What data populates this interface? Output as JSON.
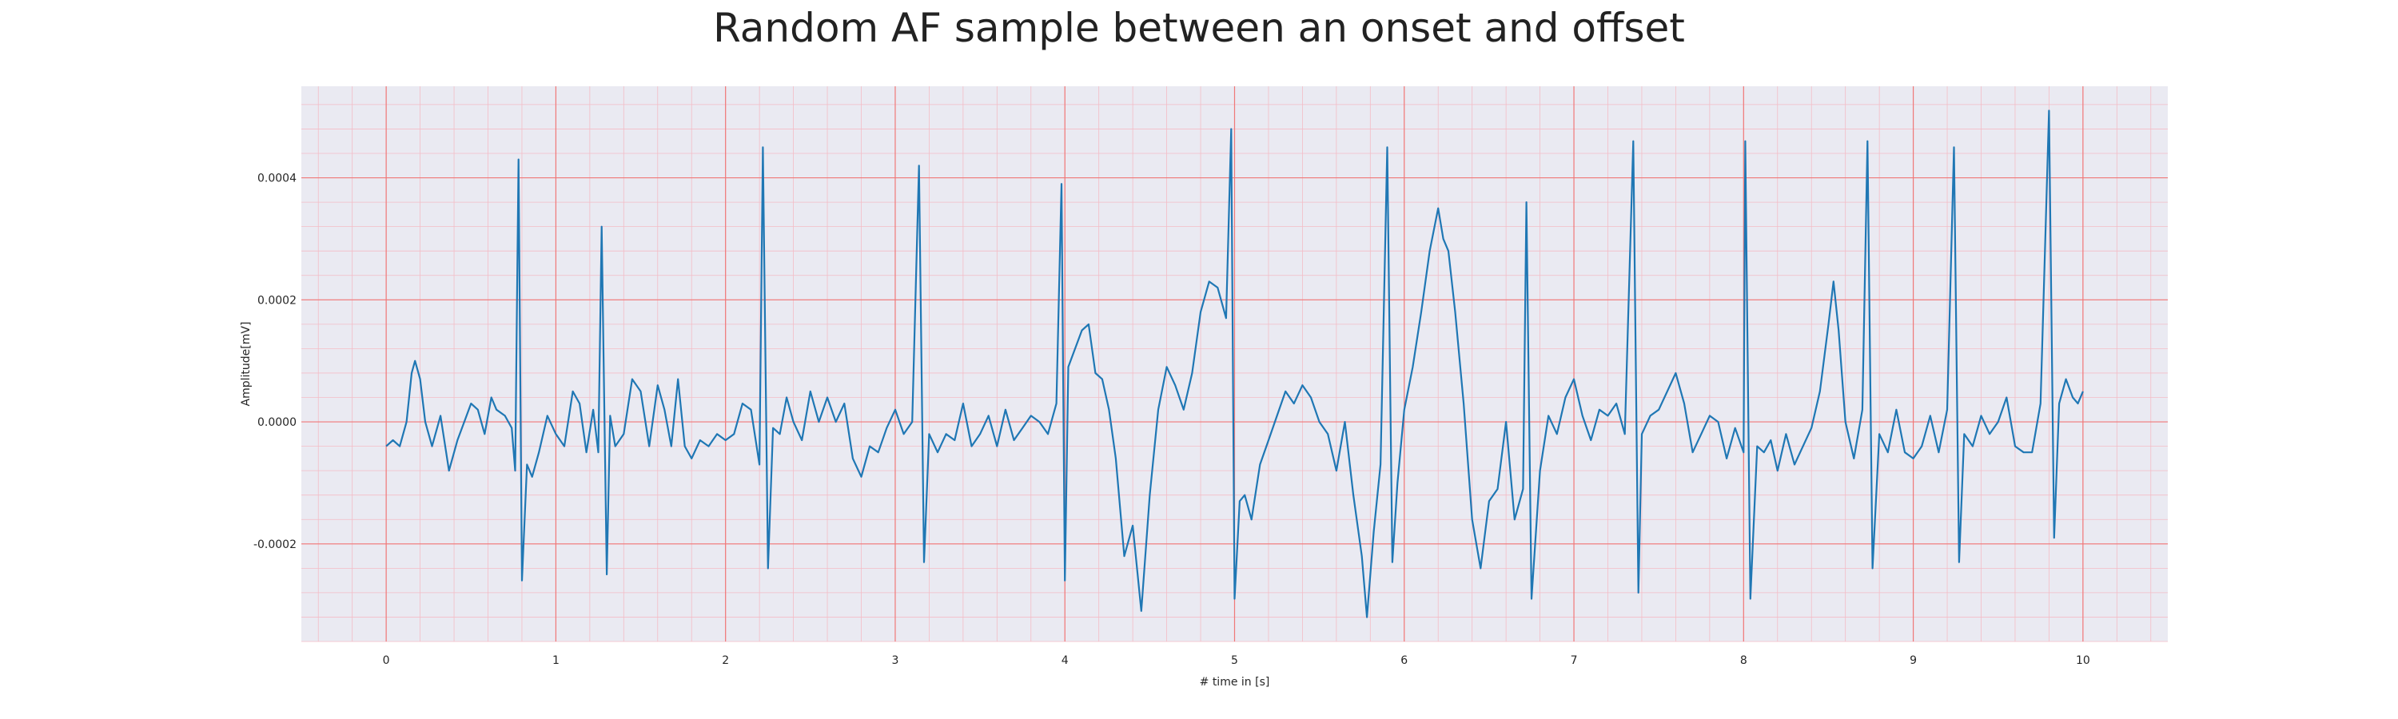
{
  "chart_data": {
    "type": "line",
    "title": "Random AF sample between an onset and offset",
    "xlabel": "# time in [s]",
    "ylabel": "Amplitude[mV]",
    "xlim": [
      -0.5,
      10.5
    ],
    "ylim": [
      -0.00036,
      0.00055
    ],
    "xticks": [
      0,
      1,
      2,
      3,
      4,
      5,
      6,
      7,
      8,
      9,
      10
    ],
    "xtick_labels": [
      "0",
      "1",
      "2",
      "3",
      "4",
      "5",
      "6",
      "7",
      "8",
      "9",
      "10"
    ],
    "yticks": [
      -0.0002,
      0.0,
      0.0002,
      0.0004
    ],
    "ytick_labels": [
      "-0.0002",
      "0.0000",
      "0.0002",
      "0.0004"
    ],
    "grid": true,
    "grid_style": "ecg-paper",
    "colors": {
      "background": "#eaeaf2",
      "major_grid": "#f07878",
      "minor_grid": "#f4bcc6",
      "line": "#1f77b4"
    },
    "series": [
      {
        "name": "",
        "points": [
          [
            0.0,
            -4e-05
          ],
          [
            0.04,
            -3e-05
          ],
          [
            0.08,
            -4e-05
          ],
          [
            0.12,
            0.0
          ],
          [
            0.15,
            8e-05
          ],
          [
            0.17,
            0.0001
          ],
          [
            0.2,
            7e-05
          ],
          [
            0.23,
            0.0
          ],
          [
            0.27,
            -4e-05
          ],
          [
            0.32,
            1e-05
          ],
          [
            0.37,
            -8e-05
          ],
          [
            0.42,
            -3e-05
          ],
          [
            0.46,
            0.0
          ],
          [
            0.5,
            3e-05
          ],
          [
            0.54,
            2e-05
          ],
          [
            0.58,
            -2e-05
          ],
          [
            0.62,
            4e-05
          ],
          [
            0.65,
            2e-05
          ],
          [
            0.7,
            1e-05
          ],
          [
            0.74,
            -1e-05
          ],
          [
            0.76,
            -8e-05
          ],
          [
            0.78,
            0.00043
          ],
          [
            0.8,
            -0.00026
          ],
          [
            0.83,
            -7e-05
          ],
          [
            0.86,
            -9e-05
          ],
          [
            0.9,
            -5e-05
          ],
          [
            0.95,
            1e-05
          ],
          [
            1.0,
            -2e-05
          ],
          [
            1.05,
            -4e-05
          ],
          [
            1.1,
            5e-05
          ],
          [
            1.14,
            3e-05
          ],
          [
            1.18,
            -5e-05
          ],
          [
            1.22,
            2e-05
          ],
          [
            1.25,
            -5e-05
          ],
          [
            1.27,
            0.00032
          ],
          [
            1.3,
            -0.00025
          ],
          [
            1.32,
            1e-05
          ],
          [
            1.35,
            -4e-05
          ],
          [
            1.4,
            -2e-05
          ],
          [
            1.45,
            7e-05
          ],
          [
            1.5,
            5e-05
          ],
          [
            1.55,
            -4e-05
          ],
          [
            1.6,
            6e-05
          ],
          [
            1.64,
            2e-05
          ],
          [
            1.68,
            -4e-05
          ],
          [
            1.72,
            7e-05
          ],
          [
            1.76,
            -4e-05
          ],
          [
            1.8,
            -6e-05
          ],
          [
            1.85,
            -3e-05
          ],
          [
            1.9,
            -4e-05
          ],
          [
            1.95,
            -2e-05
          ],
          [
            2.0,
            -3e-05
          ],
          [
            2.05,
            -2e-05
          ],
          [
            2.1,
            3e-05
          ],
          [
            2.15,
            2e-05
          ],
          [
            2.2,
            -7e-05
          ],
          [
            2.22,
            0.00045
          ],
          [
            2.25,
            -0.00024
          ],
          [
            2.28,
            -1e-05
          ],
          [
            2.32,
            -2e-05
          ],
          [
            2.36,
            4e-05
          ],
          [
            2.4,
            0.0
          ],
          [
            2.45,
            -3e-05
          ],
          [
            2.5,
            5e-05
          ],
          [
            2.55,
            0.0
          ],
          [
            2.6,
            4e-05
          ],
          [
            2.65,
            0.0
          ],
          [
            2.7,
            3e-05
          ],
          [
            2.75,
            -6e-05
          ],
          [
            2.8,
            -9e-05
          ],
          [
            2.85,
            -4e-05
          ],
          [
            2.9,
            -5e-05
          ],
          [
            2.95,
            -1e-05
          ],
          [
            3.0,
            2e-05
          ],
          [
            3.05,
            -2e-05
          ],
          [
            3.1,
            0.0
          ],
          [
            3.14,
            0.00042
          ],
          [
            3.17,
            -0.00023
          ],
          [
            3.2,
            -2e-05
          ],
          [
            3.25,
            -5e-05
          ],
          [
            3.3,
            -2e-05
          ],
          [
            3.35,
            -3e-05
          ],
          [
            3.4,
            3e-05
          ],
          [
            3.45,
            -4e-05
          ],
          [
            3.5,
            -2e-05
          ],
          [
            3.55,
            1e-05
          ],
          [
            3.6,
            -4e-05
          ],
          [
            3.65,
            2e-05
          ],
          [
            3.7,
            -3e-05
          ],
          [
            3.75,
            -1e-05
          ],
          [
            3.8,
            1e-05
          ],
          [
            3.85,
            0.0
          ],
          [
            3.9,
            -2e-05
          ],
          [
            3.95,
            3e-05
          ],
          [
            3.98,
            0.00039
          ],
          [
            4.0,
            -0.00026
          ],
          [
            4.02,
            9e-05
          ],
          [
            4.06,
            0.00012
          ],
          [
            4.1,
            0.00015
          ],
          [
            4.14,
            0.00016
          ],
          [
            4.18,
            8e-05
          ],
          [
            4.22,
            7e-05
          ],
          [
            4.26,
            2e-05
          ],
          [
            4.3,
            -6e-05
          ],
          [
            4.35,
            -0.00022
          ],
          [
            4.4,
            -0.00017
          ],
          [
            4.45,
            -0.00031
          ],
          [
            4.5,
            -0.00012
          ],
          [
            4.55,
            2e-05
          ],
          [
            4.6,
            9e-05
          ],
          [
            4.65,
            6e-05
          ],
          [
            4.7,
            2e-05
          ],
          [
            4.75,
            8e-05
          ],
          [
            4.8,
            0.00018
          ],
          [
            4.85,
            0.00023
          ],
          [
            4.9,
            0.00022
          ],
          [
            4.95,
            0.00017
          ],
          [
            4.98,
            0.00048
          ],
          [
            5.0,
            -0.00029
          ],
          [
            5.03,
            -0.00013
          ],
          [
            5.06,
            -0.00012
          ],
          [
            5.1,
            -0.00016
          ],
          [
            5.15,
            -7e-05
          ],
          [
            5.2,
            -3e-05
          ],
          [
            5.25,
            1e-05
          ],
          [
            5.3,
            5e-05
          ],
          [
            5.35,
            3e-05
          ],
          [
            5.4,
            6e-05
          ],
          [
            5.45,
            4e-05
          ],
          [
            5.5,
            0.0
          ],
          [
            5.55,
            -2e-05
          ],
          [
            5.6,
            -8e-05
          ],
          [
            5.65,
            0.0
          ],
          [
            5.7,
            -0.00012
          ],
          [
            5.75,
            -0.00022
          ],
          [
            5.78,
            -0.00032
          ],
          [
            5.82,
            -0.00018
          ],
          [
            5.86,
            -7e-05
          ],
          [
            5.9,
            0.00045
          ],
          [
            5.93,
            -0.00023
          ],
          [
            5.96,
            -0.0001
          ],
          [
            6.0,
            2e-05
          ],
          [
            6.05,
            9e-05
          ],
          [
            6.1,
            0.00018
          ],
          [
            6.15,
            0.00028
          ],
          [
            6.2,
            0.00035
          ],
          [
            6.23,
            0.0003
          ],
          [
            6.26,
            0.00028
          ],
          [
            6.3,
            0.00018
          ],
          [
            6.35,
            3e-05
          ],
          [
            6.4,
            -0.00016
          ],
          [
            6.45,
            -0.00024
          ],
          [
            6.5,
            -0.00013
          ],
          [
            6.55,
            -0.00011
          ],
          [
            6.6,
            0.0
          ],
          [
            6.65,
            -0.00016
          ],
          [
            6.7,
            -0.00011
          ],
          [
            6.72,
            0.00036
          ],
          [
            6.75,
            -0.00029
          ],
          [
            6.8,
            -8e-05
          ],
          [
            6.85,
            1e-05
          ],
          [
            6.9,
            -2e-05
          ],
          [
            6.95,
            4e-05
          ],
          [
            7.0,
            7e-05
          ],
          [
            7.05,
            1e-05
          ],
          [
            7.1,
            -3e-05
          ],
          [
            7.15,
            2e-05
          ],
          [
            7.2,
            1e-05
          ],
          [
            7.25,
            3e-05
          ],
          [
            7.3,
            -2e-05
          ],
          [
            7.35,
            0.00046
          ],
          [
            7.38,
            -0.00028
          ],
          [
            7.4,
            -2e-05
          ],
          [
            7.45,
            1e-05
          ],
          [
            7.5,
            2e-05
          ],
          [
            7.55,
            5e-05
          ],
          [
            7.6,
            8e-05
          ],
          [
            7.65,
            3e-05
          ],
          [
            7.7,
            -5e-05
          ],
          [
            7.75,
            -2e-05
          ],
          [
            7.8,
            1e-05
          ],
          [
            7.85,
            0.0
          ],
          [
            7.9,
            -6e-05
          ],
          [
            7.95,
            -1e-05
          ],
          [
            8.0,
            -5e-05
          ],
          [
            8.01,
            0.00046
          ],
          [
            8.04,
            -0.00029
          ],
          [
            8.08,
            -4e-05
          ],
          [
            8.12,
            -5e-05
          ],
          [
            8.16,
            -3e-05
          ],
          [
            8.2,
            -8e-05
          ],
          [
            8.25,
            -2e-05
          ],
          [
            8.3,
            -7e-05
          ],
          [
            8.35,
            -4e-05
          ],
          [
            8.4,
            -1e-05
          ],
          [
            8.45,
            5e-05
          ],
          [
            8.5,
            0.00016
          ],
          [
            8.53,
            0.00023
          ],
          [
            8.56,
            0.00015
          ],
          [
            8.6,
            0.0
          ],
          [
            8.65,
            -6e-05
          ],
          [
            8.7,
            2e-05
          ],
          [
            8.73,
            0.00046
          ],
          [
            8.76,
            -0.00024
          ],
          [
            8.8,
            -2e-05
          ],
          [
            8.85,
            -5e-05
          ],
          [
            8.9,
            2e-05
          ],
          [
            8.95,
            -5e-05
          ],
          [
            9.0,
            -6e-05
          ],
          [
            9.05,
            -4e-05
          ],
          [
            9.1,
            1e-05
          ],
          [
            9.15,
            -5e-05
          ],
          [
            9.2,
            2e-05
          ],
          [
            9.24,
            0.00045
          ],
          [
            9.27,
            -0.00023
          ],
          [
            9.3,
            -2e-05
          ],
          [
            9.35,
            -4e-05
          ],
          [
            9.4,
            1e-05
          ],
          [
            9.45,
            -2e-05
          ],
          [
            9.5,
            0.0
          ],
          [
            9.55,
            4e-05
          ],
          [
            9.6,
            -4e-05
          ],
          [
            9.65,
            -5e-05
          ],
          [
            9.7,
            -5e-05
          ],
          [
            9.75,
            3e-05
          ],
          [
            9.8,
            0.00051
          ],
          [
            9.83,
            -0.00019
          ],
          [
            9.86,
            3e-05
          ],
          [
            9.9,
            7e-05
          ],
          [
            9.94,
            4e-05
          ],
          [
            9.97,
            3e-05
          ],
          [
            10.0,
            5e-05
          ]
        ]
      }
    ]
  }
}
